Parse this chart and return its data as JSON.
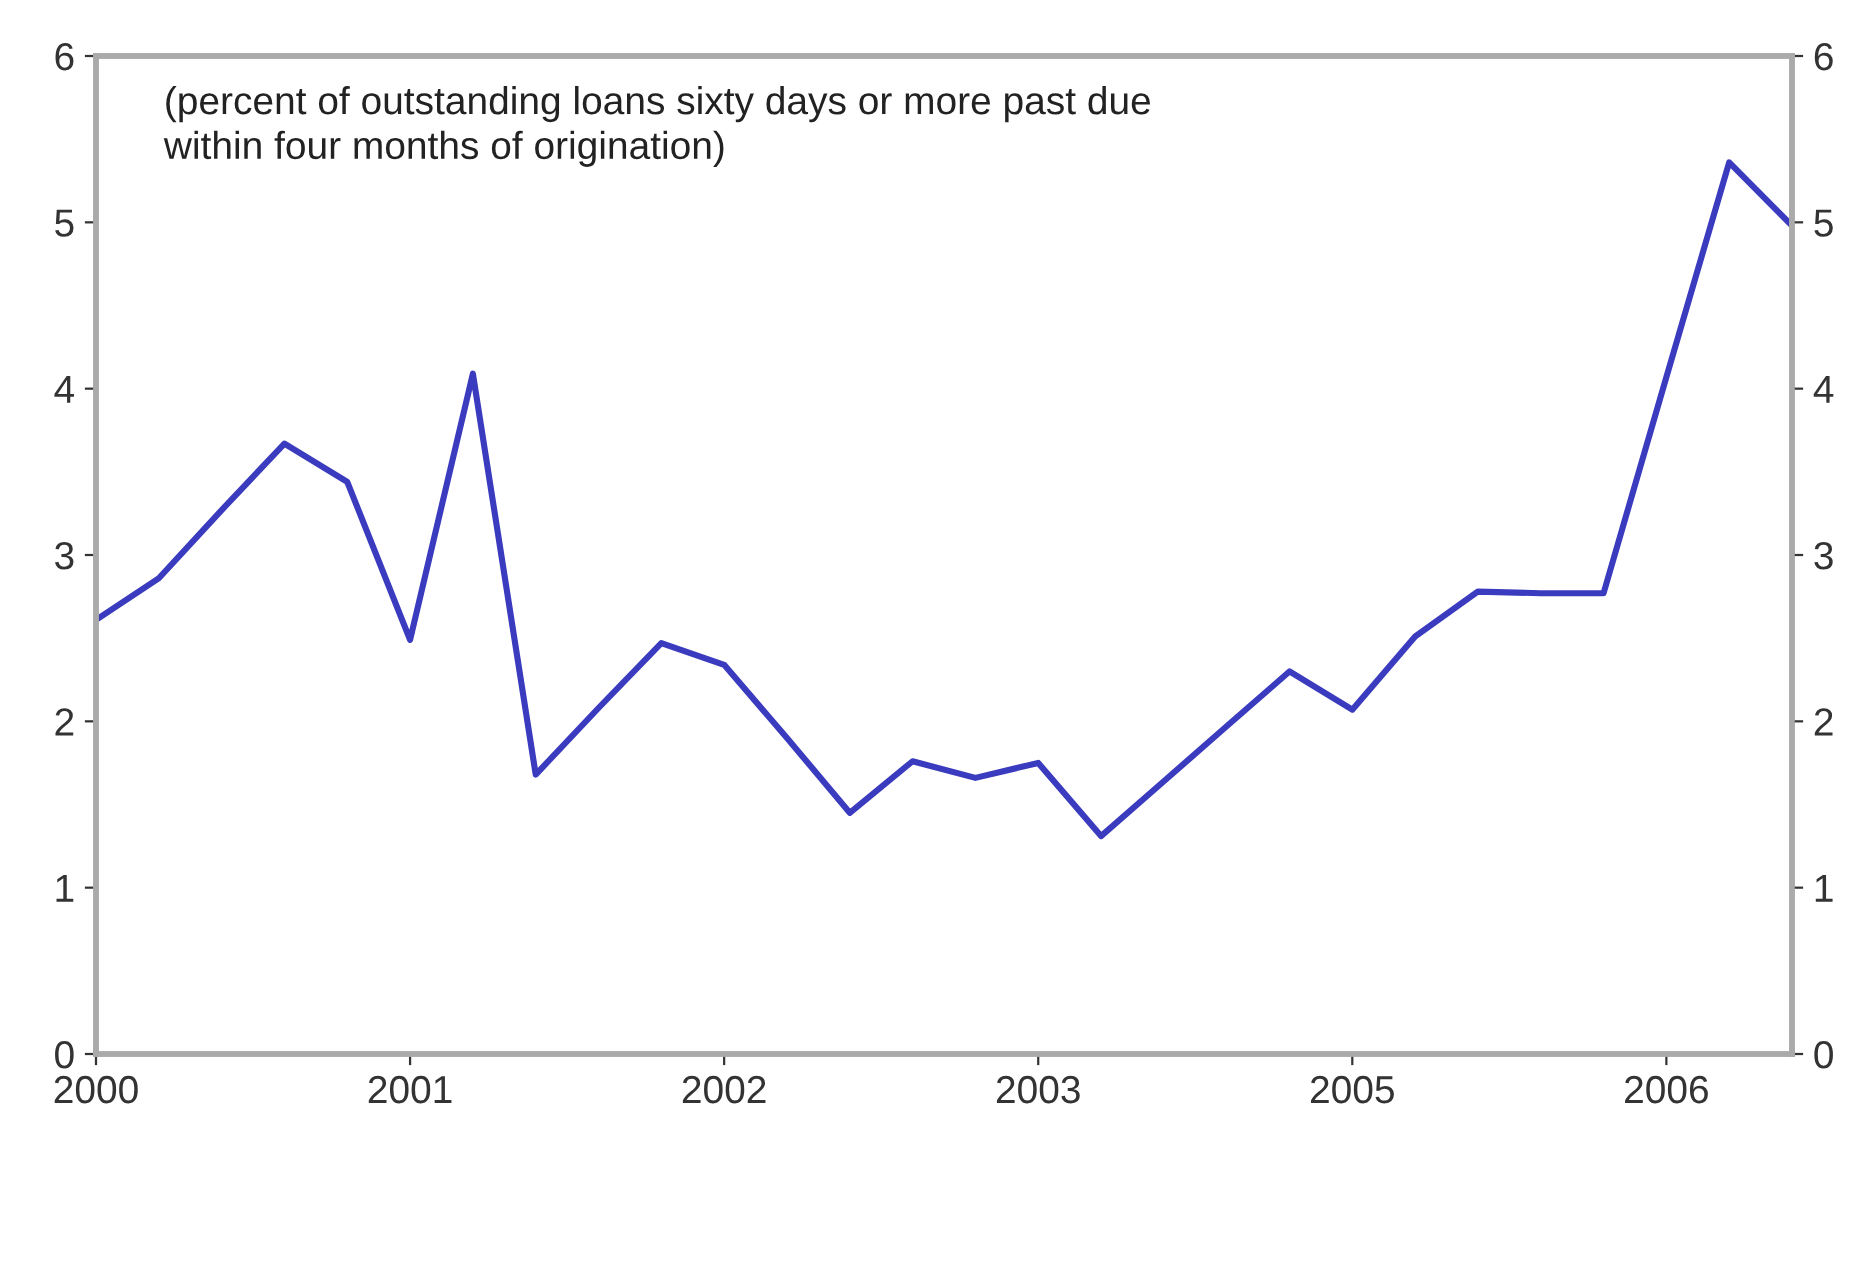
{
  "chart_data": {
    "type": "line",
    "categories": [
      "2000",
      null,
      null,
      null,
      null,
      "2001",
      null,
      null,
      null,
      null,
      "2002",
      null,
      null,
      null,
      null,
      "2003",
      null,
      null,
      null,
      null,
      "2005",
      null,
      null,
      null,
      null,
      "2006",
      null,
      null
    ],
    "series": [
      {
        "color": "#3b3bbf",
        "values": [
          2.61,
          2.86,
          3.27,
          3.67,
          3.44,
          2.49,
          4.09,
          1.68,
          2.08,
          2.47,
          2.34,
          1.9,
          1.45,
          1.76,
          1.66,
          1.75,
          1.31,
          1.64,
          1.97,
          2.3,
          2.07,
          2.51,
          2.78,
          2.77,
          2.77,
          4.07,
          5.36,
          4.98
        ]
      }
    ],
    "ylim": [
      0,
      6
    ],
    "yticks": [
      0,
      1,
      2,
      3,
      4,
      5,
      6
    ],
    "y2lim": [
      0,
      6
    ],
    "y2ticks": [
      0,
      1,
      2,
      3,
      4,
      5,
      6
    ],
    "annotations": [
      "(percent of outstanding loans sixty days or more past due\nwithin four months of origination)"
    ],
    "grid": false,
    "marker": "none",
    "line_style": "solid"
  }
}
